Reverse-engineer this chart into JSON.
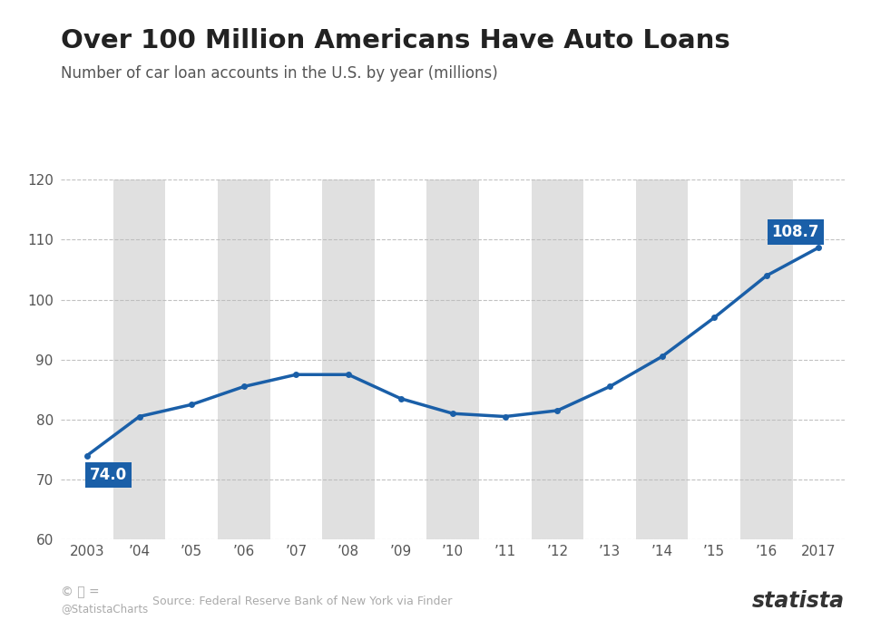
{
  "title": "Over 100 Million Americans Have Auto Loans",
  "subtitle": "Number of car loan accounts in the U.S. by year (millions)",
  "source": "Source: Federal Reserve Bank of New York via Finder",
  "watermark": "@StatistaCharts",
  "years": [
    2003,
    2004,
    2005,
    2006,
    2007,
    2008,
    2009,
    2010,
    2011,
    2012,
    2013,
    2014,
    2015,
    2016,
    2017
  ],
  "x_labels": [
    "2003",
    "’04",
    "’05",
    "’06",
    "’07",
    "’08",
    "’09",
    "’10",
    "’11",
    "’12",
    "’13",
    "’14",
    "’15",
    "’16",
    "2017"
  ],
  "values": [
    74.0,
    80.5,
    82.5,
    85.5,
    87.5,
    87.5,
    83.5,
    81.0,
    80.5,
    81.5,
    85.5,
    90.5,
    97.0,
    104.0,
    108.7
  ],
  "line_color": "#1a5fa8",
  "marker_color": "#1a5fa8",
  "label_bg_color": "#1a5fa8",
  "bg_color": "#ffffff",
  "plot_bg_color": "#f2f2f2",
  "stripe_white": "#ffffff",
  "stripe_gray": "#e0e0e0",
  "title_color": "#222222",
  "subtitle_color": "#555555",
  "grid_color": "#bbbbbb",
  "tick_color": "#555555",
  "ylim": [
    60,
    120
  ],
  "yticks": [
    60,
    70,
    80,
    90,
    100,
    110,
    120
  ],
  "annotation_2003": "74.0",
  "annotation_2017": "108.7",
  "title_fontsize": 21,
  "subtitle_fontsize": 12,
  "tick_fontsize": 11,
  "annotation_fontsize": 12
}
